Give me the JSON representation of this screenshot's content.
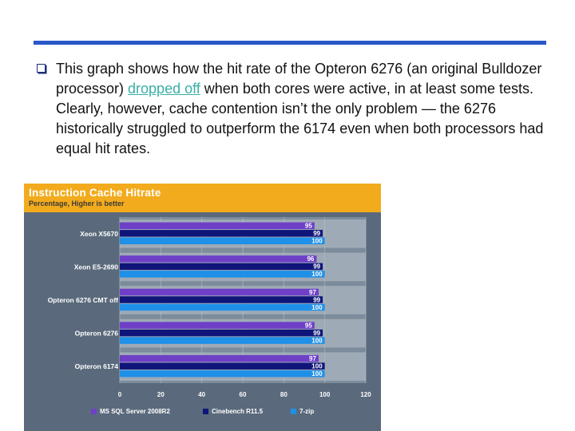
{
  "slide": {
    "text_before_link": "This graph shows how the hit rate of the Opteron 6276 (an original Bulldozer processor) ",
    "link_text": "dropped off",
    "text_after_link": " when both cores were active, in at least some tests. Clearly, however, cache contention isn’t the only problem — the 6276 historically struggled to outperform the 6174 even when both processors had equal hit rates."
  },
  "colors": {
    "accent_rule": "#2a57c9",
    "link": "#39b0a6",
    "chart_header": "#f2ab1c",
    "chart_background": "#5a6a7c"
  },
  "chart_data": {
    "type": "bar",
    "orientation": "horizontal",
    "title": "Instruction Cache Hitrate",
    "subtitle": "Percentage, Higher is better",
    "categories": [
      "Xeon X5670",
      "Xeon E5-2690",
      "Opteron 6276 CMT off",
      "Opteron 6276",
      "Opteron 6174"
    ],
    "series": [
      {
        "name": "MS SQL Server 2008R2",
        "color": "#6f3fc8",
        "values": [
          95,
          96,
          97,
          95,
          97
        ]
      },
      {
        "name": "Cinebench R11.5",
        "color": "#10157a",
        "values": [
          99,
          99,
          99,
          99,
          100
        ]
      },
      {
        "name": "7-zip",
        "color": "#1e90e8",
        "values": [
          100,
          100,
          100,
          100,
          100
        ]
      }
    ],
    "x_ticks": [
      "0",
      "20",
      "40",
      "60",
      "80",
      "100",
      "120"
    ],
    "xlim": [
      0,
      120
    ],
    "grid": true,
    "legend_position": "bottom"
  }
}
